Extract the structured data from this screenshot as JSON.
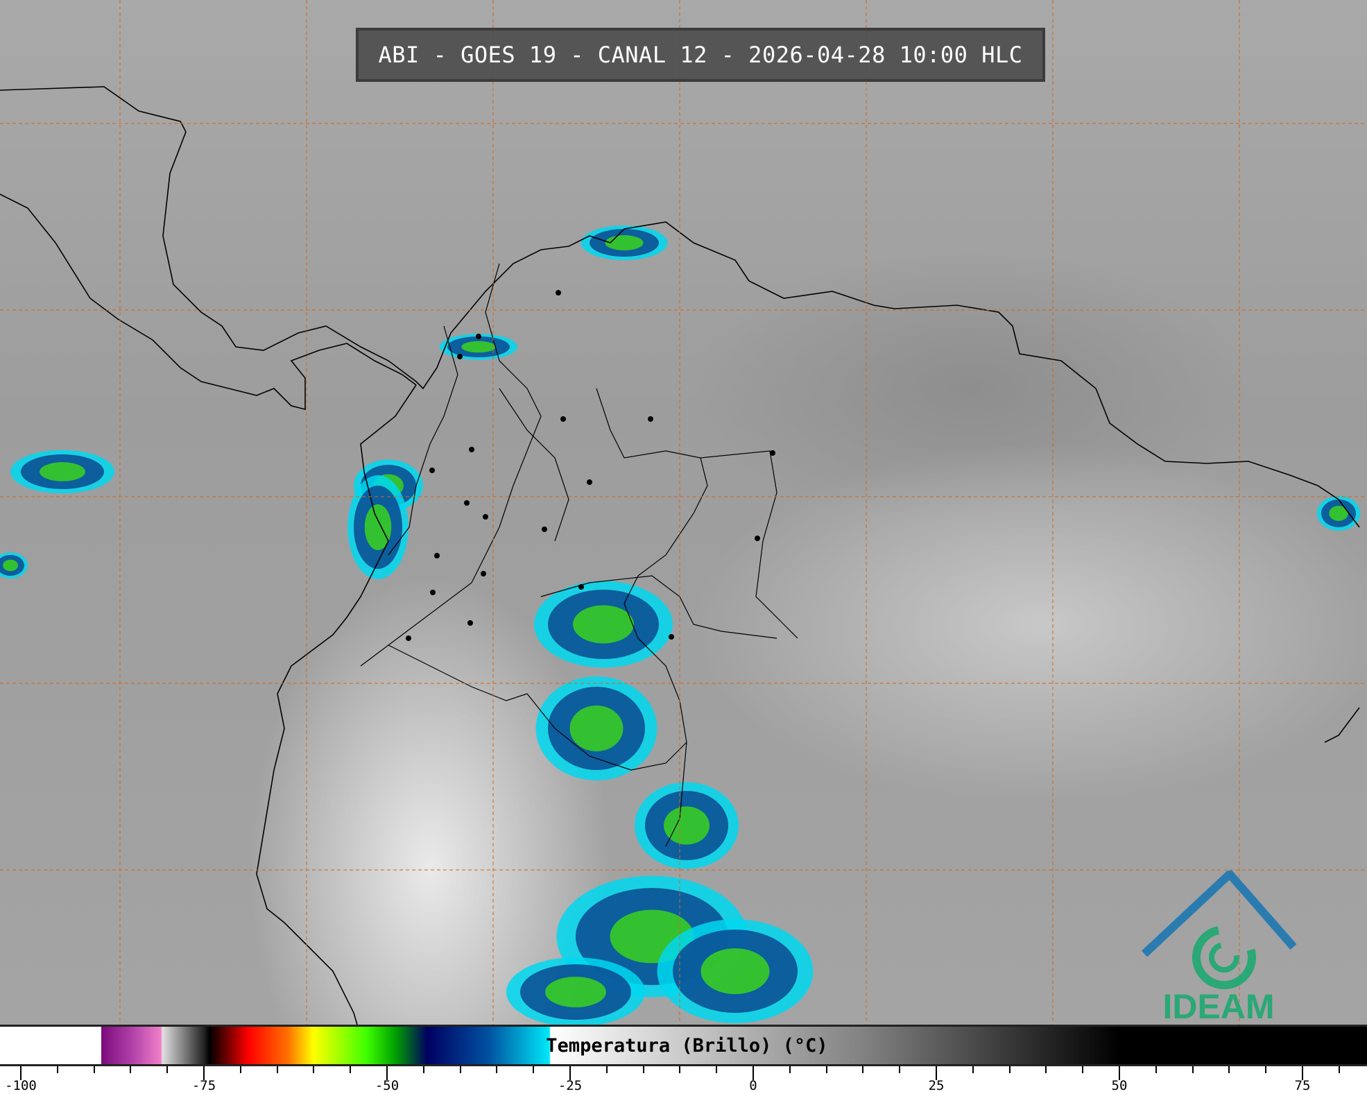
{
  "title": "ABI - GOES 19 - CANAL 12 - 2026-04-28 10:00 HLC",
  "colorbar": {
    "label": "Temperatura (Brillo) (°C)",
    "ticks": [
      "-100",
      "-75",
      "-50",
      "-25",
      "0",
      "25",
      "50",
      "75"
    ],
    "range": [
      -103,
      84
    ],
    "colors": {
      "cold_min": "#7a0a7a",
      "red": "#ff0000",
      "yellow": "#ffff00",
      "green": "#40ff00",
      "navy": "#000060",
      "cyan": "#00e8f8"
    }
  },
  "logo": {
    "text": "IDEAM",
    "color": "#2aa876"
  },
  "map": {
    "gridline_color": "#d2691e",
    "coastline_color": "#000000"
  }
}
